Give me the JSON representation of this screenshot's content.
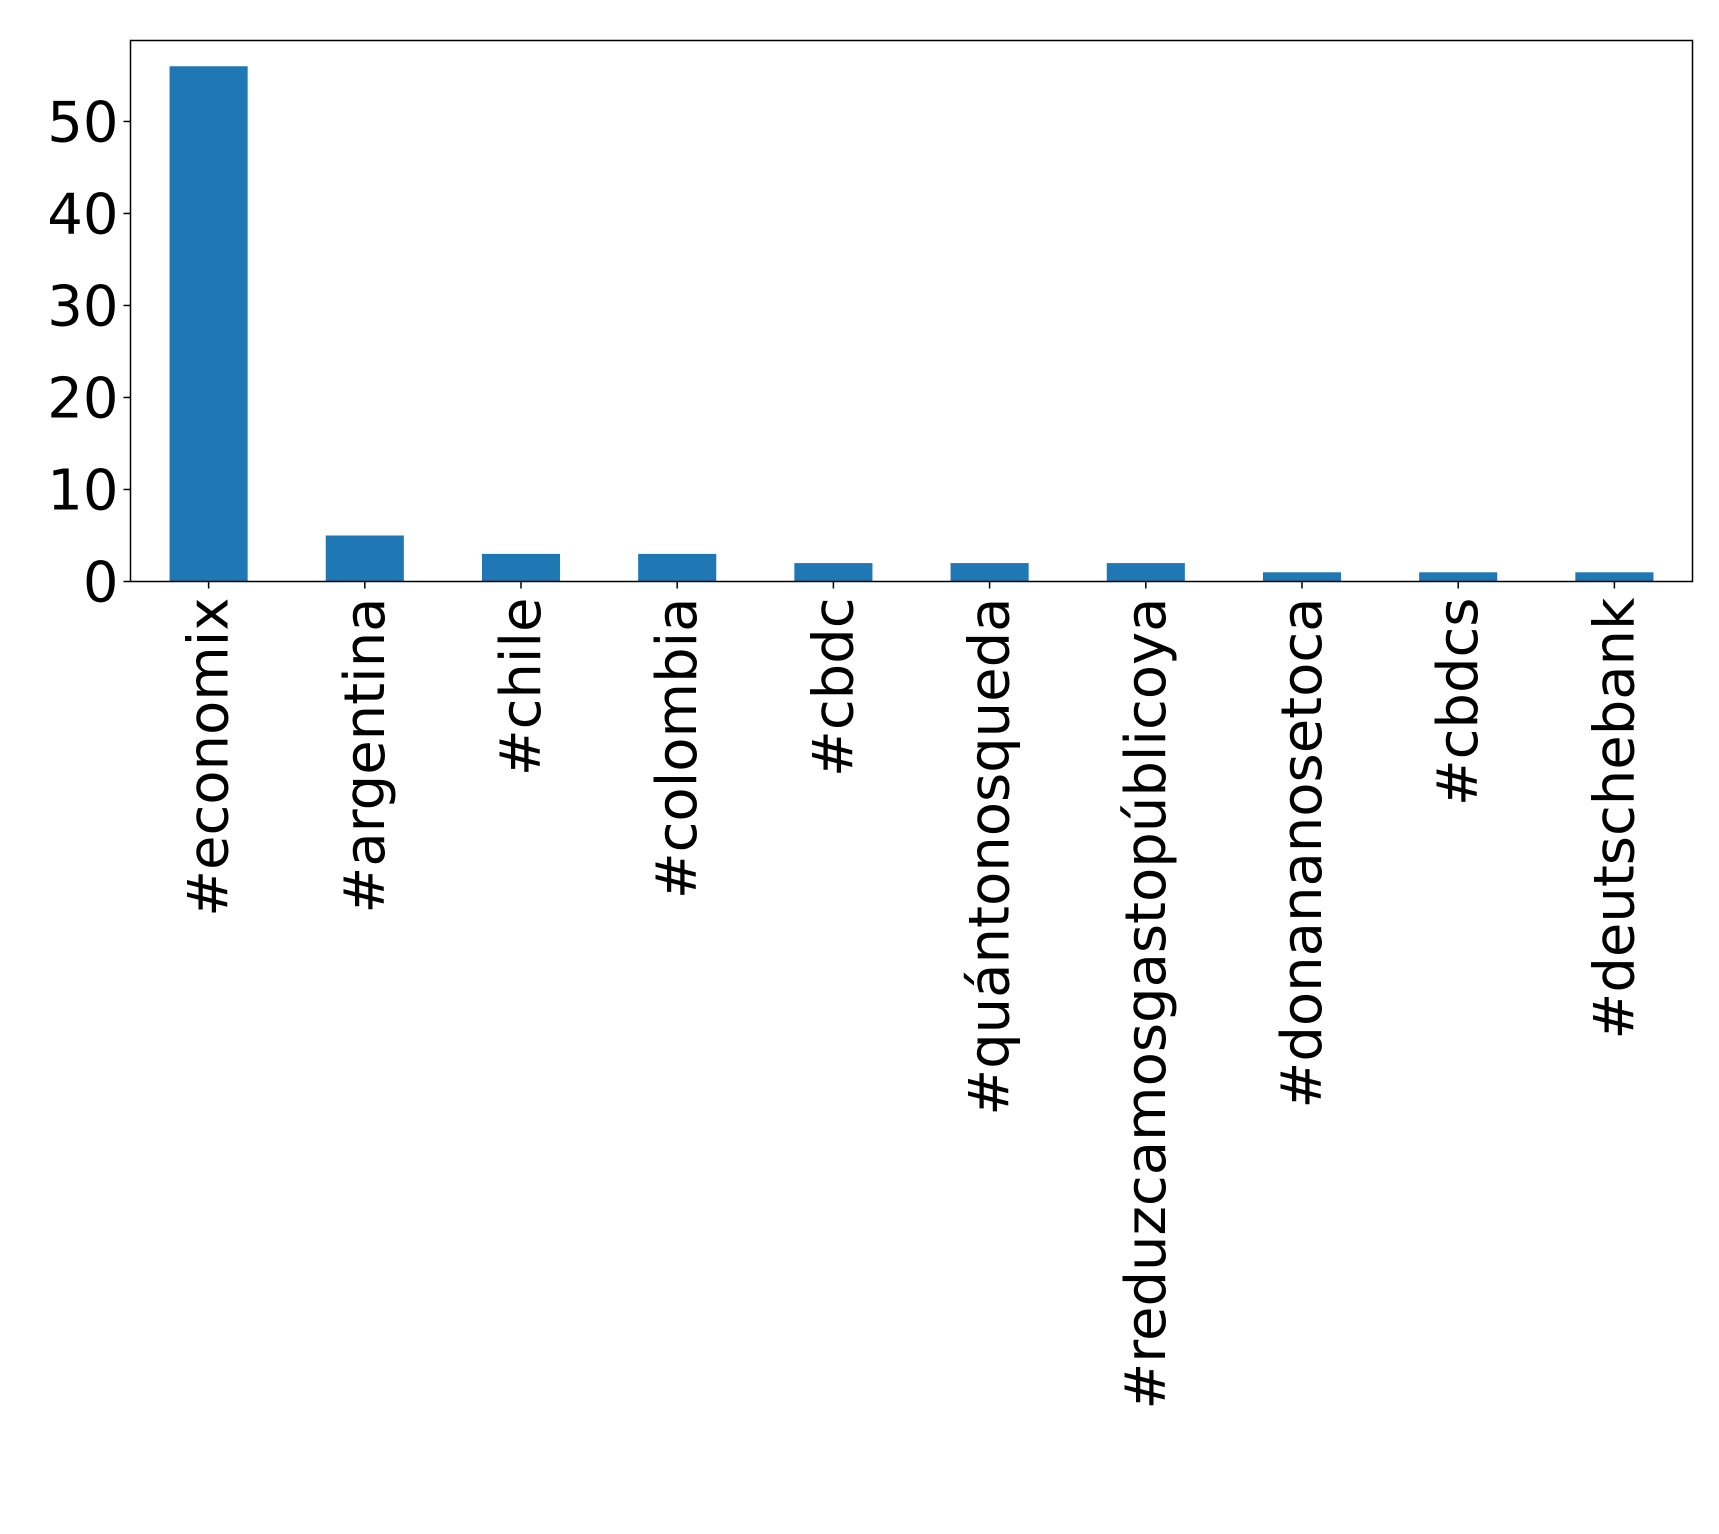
{
  "chart_data": {
    "type": "bar",
    "categories": [
      "#economix",
      "#argentina",
      "#chile",
      "#colombia",
      "#cbdc",
      "#quántonosqueda",
      "#reduzcamosgastopúblicoya",
      "#donananosetoca",
      "#cbdcs",
      "#deutschebank"
    ],
    "values": [
      56,
      5,
      3,
      3,
      2,
      2,
      2,
      1,
      1,
      1
    ],
    "yticks": [
      "0",
      "10",
      "20",
      "30",
      "40",
      "50"
    ],
    "ylim": [
      0,
      58.8
    ],
    "title": "",
    "xlabel": "",
    "ylabel": "",
    "grid": false,
    "legend": "none",
    "bar_color": "#1f77b4"
  }
}
